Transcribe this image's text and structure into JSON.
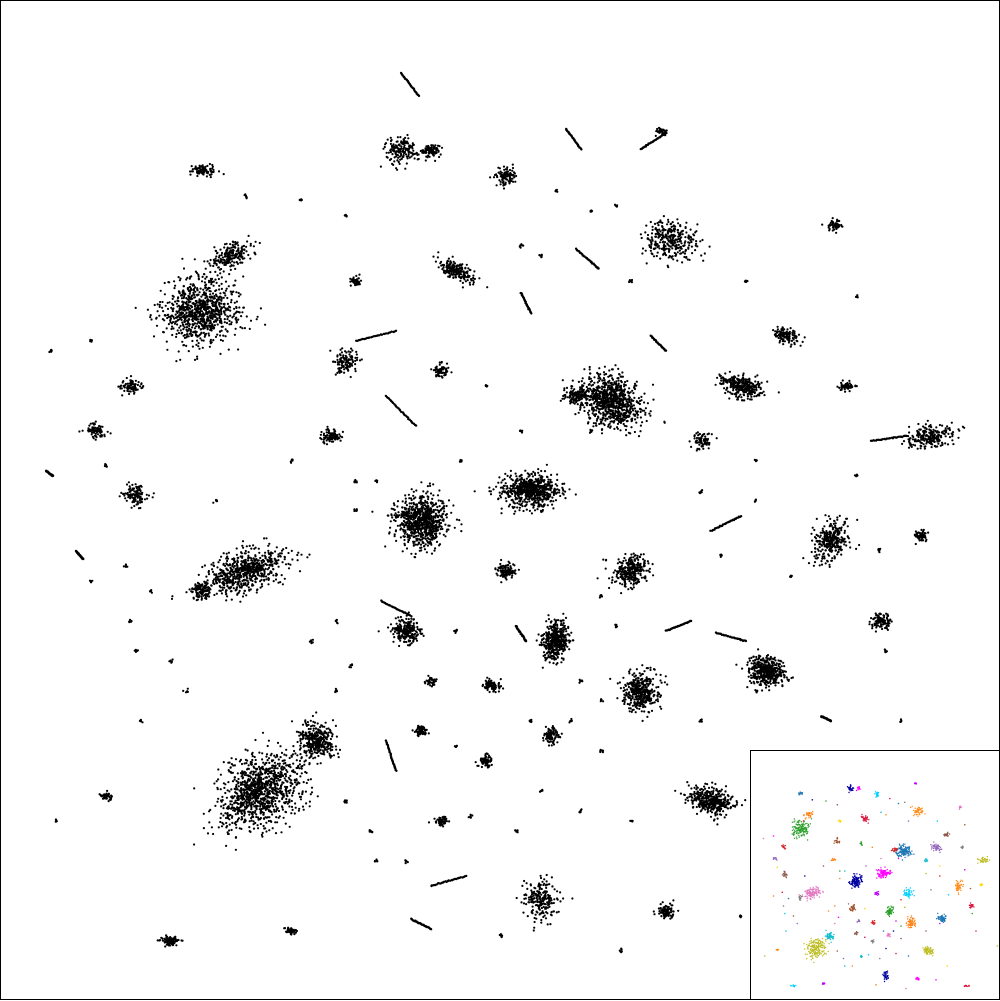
{
  "figure": {
    "main_point_color": "#000000",
    "background_color": "#ffffff",
    "frame_color": "#000000"
  },
  "inset": {
    "palette": [
      "#2ca02c",
      "#ff7f0e",
      "#1f77b4",
      "#d62728",
      "#9467bd",
      "#8c564b",
      "#e377c2",
      "#7f7f7f",
      "#bcbd22",
      "#17becf",
      "#0000a0",
      "#ff00ff",
      "#00d0ff",
      "#c000ff",
      "#ff8c1a",
      "#dc143c",
      "#ffd700",
      "#a0522d"
    ]
  }
}
